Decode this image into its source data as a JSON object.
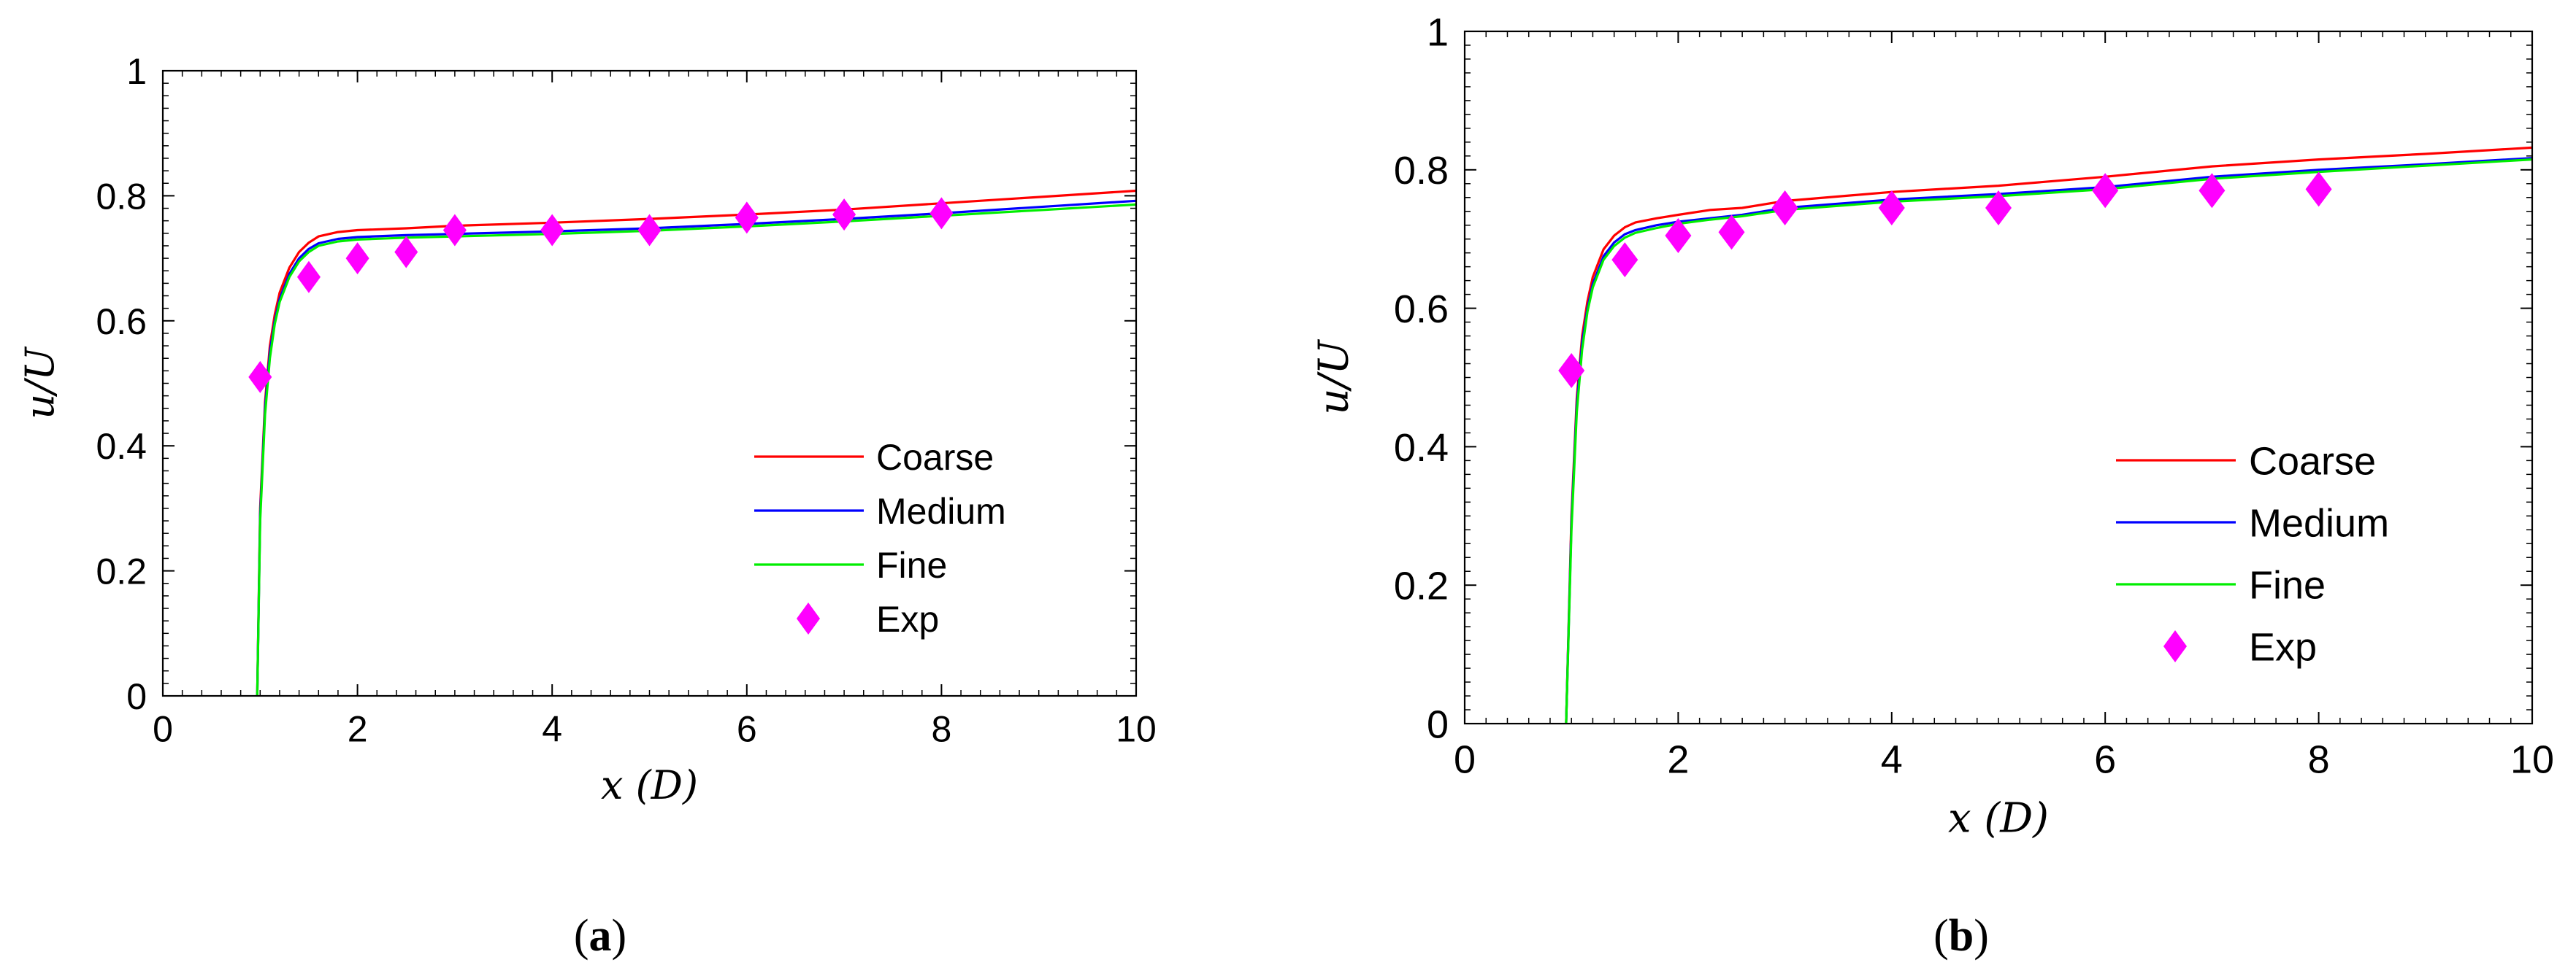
{
  "chart_data": [
    {
      "type": "line",
      "panel_label": "a",
      "xlabel": "x (D)",
      "ylabel": "u/U",
      "xlim": [
        0,
        10
      ],
      "ylim": [
        0,
        1
      ],
      "x_ticks": [
        0,
        2,
        4,
        6,
        8,
        10
      ],
      "y_ticks": [
        0,
        0.2,
        0.4,
        0.6,
        0.8,
        1
      ],
      "x_tick_labels": [
        "0",
        "2",
        "4",
        "6",
        "8",
        "10"
      ],
      "y_tick_labels": [
        "0",
        "0.2",
        "0.4",
        "0.6",
        "0.8",
        "1"
      ],
      "legend_position": "lower-right",
      "series": [
        {
          "name": "Coarse",
          "kind": "line",
          "color": "#ff0000",
          "x": [
            0.97,
            1.0,
            1.05,
            1.1,
            1.15,
            1.2,
            1.3,
            1.4,
            1.5,
            1.6,
            1.8,
            2.0,
            2.5,
            3,
            4,
            5,
            6,
            7,
            8,
            9,
            10
          ],
          "y": [
            0.0,
            0.3,
            0.47,
            0.56,
            0.61,
            0.645,
            0.685,
            0.71,
            0.725,
            0.735,
            0.742,
            0.745,
            0.748,
            0.752,
            0.757,
            0.763,
            0.77,
            0.778,
            0.788,
            0.798,
            0.808
          ]
        },
        {
          "name": "Medium",
          "kind": "line",
          "color": "#0000ff",
          "x": [
            0.97,
            1.0,
            1.05,
            1.1,
            1.15,
            1.2,
            1.3,
            1.4,
            1.5,
            1.6,
            1.8,
            2.0,
            2.5,
            3,
            4,
            5,
            6,
            7,
            8,
            9,
            10
          ],
          "y": [
            0.0,
            0.29,
            0.46,
            0.55,
            0.6,
            0.635,
            0.675,
            0.7,
            0.715,
            0.724,
            0.731,
            0.734,
            0.737,
            0.739,
            0.743,
            0.748,
            0.755,
            0.763,
            0.772,
            0.782,
            0.792
          ]
        },
        {
          "name": "Fine",
          "kind": "line",
          "color": "#00ee00",
          "x": [
            0.97,
            1.0,
            1.05,
            1.1,
            1.15,
            1.2,
            1.3,
            1.4,
            1.5,
            1.6,
            1.8,
            2.0,
            2.5,
            3,
            4,
            5,
            6,
            7,
            8,
            9,
            10
          ],
          "y": [
            0.0,
            0.28,
            0.45,
            0.54,
            0.595,
            0.63,
            0.67,
            0.695,
            0.71,
            0.72,
            0.727,
            0.73,
            0.733,
            0.735,
            0.739,
            0.744,
            0.751,
            0.759,
            0.768,
            0.777,
            0.786
          ]
        },
        {
          "name": "Exp",
          "kind": "marker",
          "marker": "diamond",
          "color": "#ff00ff",
          "x": [
            1.0,
            1.5,
            2.0,
            2.5,
            3.0,
            4.0,
            5.0,
            6.0,
            7.0,
            8.0
          ],
          "y": [
            0.51,
            0.67,
            0.7,
            0.71,
            0.745,
            0.745,
            0.745,
            0.765,
            0.77,
            0.772
          ]
        }
      ]
    },
    {
      "type": "line",
      "panel_label": "b",
      "xlabel": "x (D)",
      "ylabel": "u/U",
      "xlim": [
        0,
        10
      ],
      "ylim": [
        0,
        1
      ],
      "x_ticks": [
        0,
        2,
        4,
        6,
        8,
        10
      ],
      "y_ticks": [
        0,
        0.2,
        0.4,
        0.6,
        0.8,
        1
      ],
      "x_tick_labels": [
        "0",
        "2",
        "4",
        "6",
        "8",
        "10"
      ],
      "y_tick_labels": [
        "0",
        "0.2",
        "0.4",
        "0.6",
        "0.8",
        "1"
      ],
      "legend_position": "lower-right",
      "series": [
        {
          "name": "Coarse",
          "kind": "line",
          "color": "#ff0000",
          "x": [
            0.95,
            1.0,
            1.05,
            1.1,
            1.15,
            1.2,
            1.3,
            1.4,
            1.5,
            1.6,
            1.8,
            2.0,
            2.3,
            2.6,
            3,
            4,
            5,
            6,
            7,
            8,
            9,
            10
          ],
          "y": [
            0.0,
            0.3,
            0.47,
            0.56,
            0.61,
            0.645,
            0.685,
            0.705,
            0.717,
            0.724,
            0.73,
            0.735,
            0.742,
            0.745,
            0.755,
            0.768,
            0.777,
            0.79,
            0.805,
            0.815,
            0.823,
            0.832
          ]
        },
        {
          "name": "Medium",
          "kind": "line",
          "color": "#0000ff",
          "x": [
            0.95,
            1.0,
            1.05,
            1.1,
            1.15,
            1.2,
            1.3,
            1.4,
            1.5,
            1.6,
            1.8,
            2.0,
            2.3,
            2.6,
            3,
            4,
            5,
            6,
            7,
            8,
            9,
            10
          ],
          "y": [
            0.0,
            0.29,
            0.46,
            0.55,
            0.6,
            0.635,
            0.675,
            0.695,
            0.707,
            0.713,
            0.72,
            0.725,
            0.73,
            0.735,
            0.745,
            0.757,
            0.765,
            0.775,
            0.79,
            0.8,
            0.808,
            0.817
          ]
        },
        {
          "name": "Fine",
          "kind": "line",
          "color": "#00ee00",
          "x": [
            0.95,
            1.0,
            1.05,
            1.1,
            1.15,
            1.2,
            1.3,
            1.4,
            1.5,
            1.6,
            1.8,
            2.0,
            2.3,
            2.6,
            3,
            4,
            5,
            6,
            7,
            8,
            9,
            10
          ],
          "y": [
            0.0,
            0.28,
            0.45,
            0.54,
            0.595,
            0.63,
            0.67,
            0.69,
            0.702,
            0.709,
            0.716,
            0.722,
            0.728,
            0.733,
            0.742,
            0.754,
            0.762,
            0.772,
            0.787,
            0.797,
            0.806,
            0.815
          ]
        },
        {
          "name": "Exp",
          "kind": "marker",
          "marker": "diamond",
          "color": "#ff00ff",
          "x": [
            1.0,
            1.5,
            2.0,
            2.5,
            3.0,
            4.0,
            5.0,
            6.0,
            7.0,
            8.0
          ],
          "y": [
            0.51,
            0.67,
            0.705,
            0.71,
            0.745,
            0.745,
            0.745,
            0.77,
            0.77,
            0.772
          ]
        }
      ]
    }
  ]
}
